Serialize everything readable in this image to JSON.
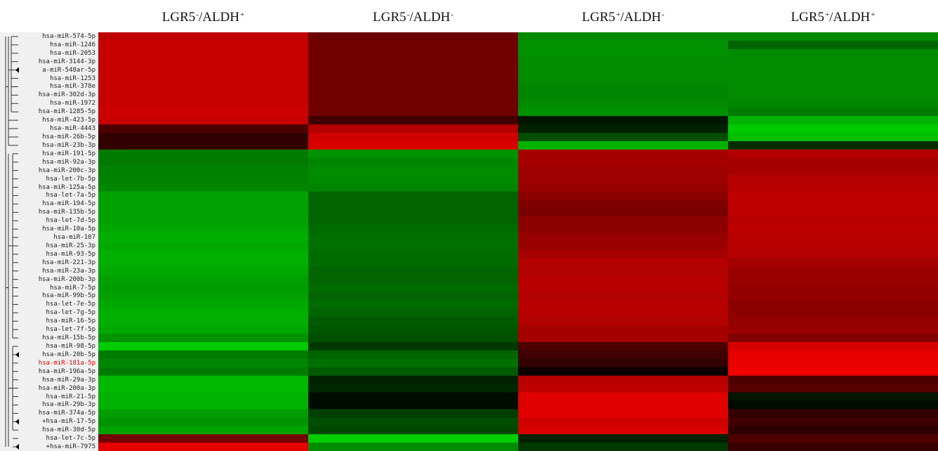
{
  "chart_data": {
    "type": "heatmap",
    "title": "",
    "xlabel": "",
    "ylabel": "",
    "columns": [
      {
        "base": "LGR5",
        "sign1": "-",
        "mid": "/ALDH",
        "sign2": "+"
      },
      {
        "base": "LGR5",
        "sign1": "-",
        "mid": "/ALDH",
        "sign2": "-"
      },
      {
        "base": "LGR5",
        "sign1": "+",
        "mid": "/ALDH",
        "sign2": "-"
      },
      {
        "base": "LGR5",
        "sign1": "+",
        "mid": "/ALDH",
        "sign2": "+"
      }
    ],
    "rows": [
      "hsa-miR-574-5p",
      "hsa-miR-1246",
      "hsa-miR-2053",
      "hsa-miR-3144-3p",
      "a-miR-548ar-5p",
      "hsa-miR-1253",
      "hsa-miR-378e",
      "hsa-miR-302d-3p",
      "hsa-miR-1972",
      "hsa-miR-1285-5p",
      "hsa-miR-423-5p",
      "hsa-miR-4443",
      "hsa-miR-26b-5p",
      "hsa-miR-23b-3p",
      "hsa-miR-191-5p",
      "hsa-miR-92a-3p",
      "hsa-miR-200c-3p",
      "hsa-let-7b-5p",
      "hsa-miR-125a-5p",
      "hsa-let-7a-5p",
      "hsa-miR-194-5p",
      "hsa-miR-135b-5p",
      "hsa-let-7d-5p",
      "hsa-miR-10a-5p",
      "hsa-miR-107",
      "hsa-miR-25-3p",
      "hsa-miR-93-5p",
      "hsa-miR-221-3p",
      "hsa-miR-23a-3p",
      "hsa-miR-200b-3p",
      "hsa-miR-7-5p",
      "hsa-miR-99b-5p",
      "hsa-let-7e-5p",
      "hsa-let-7g-5p",
      "hsa-miR-16-5p",
      "hsa-let-7f-5p",
      "hsa-miR-15b-5p",
      "hsa-miR-98-5p",
      "hsa-miR-20b-5p",
      "hsa-miR-181a-5p",
      "hsa-miR-196a-5p",
      "hsa-miR-29a-3p",
      "hsa-miR-200a-3p",
      "hsa-miR-21-5p",
      "hsa-miR-29b-3p",
      "hsa-miR-374a-5p",
      "+hsa-miR-17-5p",
      "hsa-miR-30d-5p",
      "hsa-let-7c-5p",
      "+hsa-miR-7975"
    ],
    "highlighted_row": "hsa-miR-181a-5p",
    "value_range": [
      -1,
      1
    ],
    "color_scale": {
      "negative": "#00e000",
      "zero": "#000000",
      "positive": "#ff0000"
    },
    "values": [
      [
        0.75,
        0.42,
        -0.62,
        -0.62
      ],
      [
        0.78,
        0.44,
        -0.65,
        -0.45
      ],
      [
        0.78,
        0.44,
        -0.65,
        -0.62
      ],
      [
        0.78,
        0.44,
        -0.62,
        -0.62
      ],
      [
        0.78,
        0.44,
        -0.62,
        -0.62
      ],
      [
        0.78,
        0.44,
        -0.62,
        -0.62
      ],
      [
        0.78,
        0.44,
        -0.6,
        -0.62
      ],
      [
        0.78,
        0.44,
        -0.6,
        -0.62
      ],
      [
        0.78,
        0.44,
        -0.62,
        -0.6
      ],
      [
        0.8,
        0.44,
        -0.65,
        -0.55
      ],
      [
        0.78,
        0.25,
        -0.1,
        -0.8
      ],
      [
        0.3,
        0.7,
        -0.15,
        -0.9
      ],
      [
        0.2,
        0.82,
        -0.35,
        -0.85
      ],
      [
        0.2,
        0.85,
        -0.8,
        -0.2
      ],
      [
        -0.55,
        -0.65,
        0.65,
        0.7
      ],
      [
        -0.55,
        -0.6,
        0.65,
        0.65
      ],
      [
        -0.58,
        -0.62,
        0.62,
        0.65
      ],
      [
        -0.58,
        -0.62,
        0.62,
        0.7
      ],
      [
        -0.6,
        -0.6,
        0.6,
        0.72
      ],
      [
        -0.72,
        -0.45,
        0.55,
        0.75
      ],
      [
        -0.72,
        -0.45,
        0.5,
        0.75
      ],
      [
        -0.72,
        -0.45,
        0.48,
        0.75
      ],
      [
        -0.72,
        -0.45,
        0.55,
        0.72
      ],
      [
        -0.75,
        -0.48,
        0.55,
        0.75
      ],
      [
        -0.78,
        -0.5,
        0.6,
        0.72
      ],
      [
        -0.75,
        -0.5,
        0.6,
        0.72
      ],
      [
        -0.78,
        -0.48,
        0.65,
        0.7
      ],
      [
        -0.78,
        -0.48,
        0.7,
        0.65
      ],
      [
        -0.75,
        -0.45,
        0.7,
        0.6
      ],
      [
        -0.72,
        -0.45,
        0.72,
        0.6
      ],
      [
        -0.7,
        -0.48,
        0.72,
        0.58
      ],
      [
        -0.72,
        -0.45,
        0.7,
        0.58
      ],
      [
        -0.75,
        -0.48,
        0.72,
        0.55
      ],
      [
        -0.78,
        -0.45,
        0.72,
        0.55
      ],
      [
        -0.78,
        -0.4,
        0.7,
        0.58
      ],
      [
        -0.75,
        -0.38,
        0.65,
        0.6
      ],
      [
        -0.65,
        -0.35,
        0.65,
        0.5
      ],
      [
        -0.9,
        -0.25,
        0.3,
        0.85
      ],
      [
        -0.55,
        -0.45,
        0.25,
        0.9
      ],
      [
        -0.6,
        -0.5,
        0.2,
        0.92
      ],
      [
        -0.55,
        -0.4,
        0.05,
        0.95
      ],
      [
        -0.82,
        -0.15,
        0.72,
        0.3
      ],
      [
        -0.82,
        -0.18,
        0.75,
        0.35
      ],
      [
        -0.8,
        -0.05,
        0.88,
        -0.1
      ],
      [
        -0.8,
        -0.05,
        0.88,
        -0.05
      ],
      [
        -0.7,
        -0.28,
        0.88,
        0.2
      ],
      [
        -0.65,
        -0.35,
        0.82,
        0.25
      ],
      [
        -0.72,
        -0.32,
        0.85,
        0.18
      ],
      [
        0.45,
        -0.92,
        -0.15,
        0.3
      ],
      [
        0.9,
        -0.62,
        -0.25,
        0.22
      ]
    ]
  }
}
